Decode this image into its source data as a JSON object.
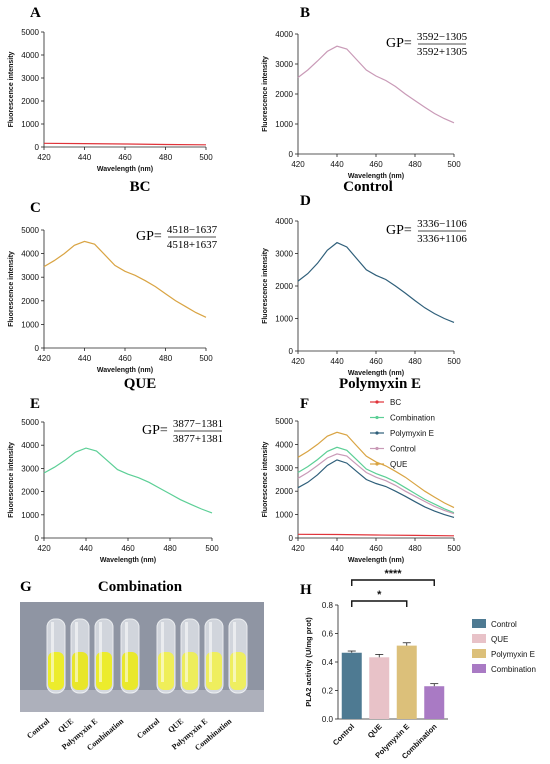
{
  "figure": {
    "panel_letters": [
      "A",
      "B",
      "C",
      "D",
      "E",
      "F",
      "G",
      "H"
    ],
    "panel_titles": {
      "A": "BC",
      "B": "Control",
      "C": "QUE",
      "D": "Polymyxin E",
      "E": "Combination"
    },
    "xlabel": "Wavelength (nm)",
    "ylabel": "Fluorescence intensity",
    "gp_label": "GP=",
    "gp": {
      "B": {
        "num": "3592−1305",
        "den": "3592+1305"
      },
      "C": {
        "num": "4518−1637",
        "den": "4518+1637"
      },
      "D": {
        "num": "3336−1106",
        "den": "3336+1106"
      },
      "E": {
        "num": "3877−1381",
        "den": "3877+1381"
      }
    },
    "photo_labels": [
      "Control",
      "QUE",
      "Polymyxin E",
      "Combination",
      "Control",
      "QUE",
      "Polymyxin E",
      "Combination"
    ]
  },
  "colors": {
    "BC": "#e0333a",
    "Control": "#c99ab7",
    "QUE": "#d9a443",
    "Polymyxin E": "#2f5f7a",
    "Combination": "#5ccf96",
    "bar_Control": "#4e7a92",
    "bar_QUE": "#e8c2c8",
    "bar_Polymyxin E": "#dcc07a",
    "bar_Combination": "#a97ac4"
  },
  "chart_data": [
    {
      "panel": "A",
      "type": "line",
      "xlim": [
        420,
        500
      ],
      "ylim": [
        0,
        5000
      ],
      "xticks": [
        420,
        440,
        460,
        480,
        500
      ],
      "yticks": [
        0,
        1000,
        2000,
        3000,
        4000,
        5000
      ],
      "series": [
        {
          "name": "BC",
          "x": [
            420,
            440,
            460,
            480,
            500
          ],
          "y": [
            160,
            150,
            130,
            110,
            95
          ]
        }
      ]
    },
    {
      "panel": "B",
      "type": "line",
      "xlim": [
        420,
        500
      ],
      "ylim": [
        0,
        4000
      ],
      "xticks": [
        420,
        440,
        460,
        480,
        500
      ],
      "yticks": [
        0,
        1000,
        2000,
        3000,
        4000
      ],
      "series": [
        {
          "name": "Control",
          "x": [
            420,
            425,
            430,
            435,
            440,
            445,
            450,
            455,
            460,
            465,
            470,
            475,
            480,
            485,
            490,
            495,
            500
          ],
          "y": [
            2550,
            2800,
            3100,
            3420,
            3592,
            3500,
            3150,
            2800,
            2600,
            2450,
            2250,
            2000,
            1780,
            1560,
            1350,
            1180,
            1040
          ]
        }
      ]
    },
    {
      "panel": "C",
      "type": "line",
      "xlim": [
        420,
        500
      ],
      "ylim": [
        0,
        5000
      ],
      "xticks": [
        420,
        440,
        460,
        480,
        500
      ],
      "yticks": [
        0,
        1000,
        2000,
        3000,
        4000,
        5000
      ],
      "series": [
        {
          "name": "QUE",
          "x": [
            420,
            425,
            430,
            435,
            440,
            445,
            450,
            455,
            460,
            465,
            470,
            475,
            480,
            485,
            490,
            495,
            500
          ],
          "y": [
            3450,
            3700,
            4000,
            4350,
            4518,
            4400,
            3950,
            3500,
            3250,
            3080,
            2850,
            2600,
            2300,
            2000,
            1750,
            1500,
            1300
          ]
        }
      ]
    },
    {
      "panel": "D",
      "type": "line",
      "xlim": [
        420,
        500
      ],
      "ylim": [
        0,
        4000
      ],
      "xticks": [
        420,
        440,
        460,
        480,
        500
      ],
      "yticks": [
        0,
        1000,
        2000,
        3000,
        4000
      ],
      "series": [
        {
          "name": "Polymyxin E",
          "x": [
            420,
            425,
            430,
            435,
            440,
            445,
            450,
            455,
            460,
            465,
            470,
            475,
            480,
            485,
            490,
            495,
            500
          ],
          "y": [
            2150,
            2380,
            2700,
            3100,
            3336,
            3200,
            2850,
            2500,
            2330,
            2200,
            2000,
            1780,
            1550,
            1330,
            1150,
            1000,
            880
          ]
        }
      ]
    },
    {
      "panel": "E",
      "type": "line",
      "xlim": [
        420,
        500
      ],
      "ylim": [
        0,
        5000
      ],
      "xticks": [
        420,
        440,
        460,
        480,
        500
      ],
      "yticks": [
        0,
        1000,
        2000,
        3000,
        4000,
        5000
      ],
      "series": [
        {
          "name": "Combination",
          "x": [
            420,
            425,
            430,
            435,
            440,
            445,
            450,
            455,
            460,
            465,
            470,
            475,
            480,
            485,
            490,
            495,
            500
          ],
          "y": [
            2800,
            3050,
            3350,
            3700,
            3877,
            3750,
            3350,
            2950,
            2750,
            2600,
            2400,
            2150,
            1900,
            1650,
            1450,
            1250,
            1080
          ]
        }
      ]
    },
    {
      "panel": "F",
      "type": "line",
      "xlim": [
        420,
        500
      ],
      "ylim": [
        0,
        5000
      ],
      "xticks": [
        420,
        440,
        460,
        480,
        500
      ],
      "yticks": [
        0,
        1000,
        2000,
        3000,
        4000,
        5000
      ],
      "legend": [
        "BC",
        "Combination",
        "Polymyxin E",
        "Control",
        "QUE"
      ],
      "series": [
        {
          "name": "BC",
          "x": [
            420,
            440,
            460,
            480,
            500
          ],
          "y": [
            160,
            150,
            130,
            110,
            95
          ]
        },
        {
          "name": "Combination",
          "x": [
            420,
            425,
            430,
            435,
            440,
            445,
            450,
            455,
            460,
            465,
            470,
            475,
            480,
            485,
            490,
            495,
            500
          ],
          "y": [
            2800,
            3050,
            3350,
            3700,
            3877,
            3750,
            3350,
            2950,
            2750,
            2600,
            2400,
            2150,
            1900,
            1650,
            1450,
            1250,
            1080
          ]
        },
        {
          "name": "Polymyxin E",
          "x": [
            420,
            425,
            430,
            435,
            440,
            445,
            450,
            455,
            460,
            465,
            470,
            475,
            480,
            485,
            490,
            495,
            500
          ],
          "y": [
            2150,
            2380,
            2700,
            3100,
            3336,
            3200,
            2850,
            2500,
            2330,
            2200,
            2000,
            1780,
            1550,
            1330,
            1150,
            1000,
            880
          ]
        },
        {
          "name": "Control",
          "x": [
            420,
            425,
            430,
            435,
            440,
            445,
            450,
            455,
            460,
            465,
            470,
            475,
            480,
            485,
            490,
            495,
            500
          ],
          "y": [
            2550,
            2800,
            3100,
            3420,
            3592,
            3500,
            3150,
            2800,
            2600,
            2450,
            2250,
            2000,
            1780,
            1560,
            1350,
            1180,
            1040
          ]
        },
        {
          "name": "QUE",
          "x": [
            420,
            425,
            430,
            435,
            440,
            445,
            450,
            455,
            460,
            465,
            470,
            475,
            480,
            485,
            490,
            495,
            500
          ],
          "y": [
            3450,
            3700,
            4000,
            4350,
            4518,
            4400,
            3950,
            3500,
            3250,
            3080,
            2850,
            2600,
            2300,
            2000,
            1750,
            1500,
            1300
          ]
        }
      ]
    },
    {
      "panel": "H",
      "type": "bar",
      "ylabel": "PLA2 activity (U/mg prot)",
      "ylim": [
        0,
        0.8
      ],
      "yticks": [
        "0.0",
        "0.2",
        "0.4",
        "0.6",
        "0.8"
      ],
      "categories": [
        "Control",
        "QUE",
        "Polymyxin E",
        "Combination"
      ],
      "values": [
        0.465,
        0.433,
        0.515,
        0.23
      ],
      "errors": [
        0.012,
        0.02,
        0.02,
        0.018
      ],
      "legend": [
        "Control",
        "QUE",
        "Polymyxin E",
        "Combination"
      ],
      "significance": [
        {
          "from": "Control",
          "to": "Polymyxin E",
          "label": "*"
        },
        {
          "from": "Control",
          "to": "Combination",
          "label": "****"
        }
      ]
    }
  ]
}
